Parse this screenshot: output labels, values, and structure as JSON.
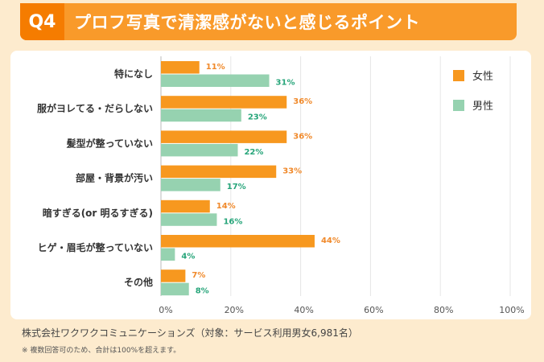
{
  "header": {
    "badge": "Q4",
    "title": "プロフ写真で清潔感がないと感じるポイント"
  },
  "chart_data": {
    "type": "bar",
    "orientation": "horizontal",
    "categories": [
      "特になし",
      "服がヨレてる・だらしない",
      "髪型が整っていない",
      "部屋・背景が汚い",
      "暗すぎる(or 明るすぎる)",
      "ヒゲ・眉毛が整っていない",
      "その他"
    ],
    "series": [
      {
        "name": "女性",
        "color": "#f7981f",
        "label_color": "#f0892a",
        "values": [
          11,
          36,
          36,
          33,
          14,
          44,
          7
        ]
      },
      {
        "name": "男性",
        "color": "#96d2b0",
        "label_color": "#27a57a",
        "values": [
          31,
          23,
          22,
          17,
          16,
          4,
          8
        ]
      }
    ],
    "xlim": [
      0,
      100
    ],
    "xticks": [
      "0%",
      "20%",
      "40%",
      "60%",
      "80%",
      "100%"
    ],
    "grid": true,
    "legend_position": "top-right",
    "data_label_suffix": "%"
  },
  "footer": {
    "source": "株式会社ワクワクコミュニケーションズ（対象：サービス利用男女6,981名）",
    "note": "※ 複数回答可のため、合計は100%を超えます。"
  }
}
